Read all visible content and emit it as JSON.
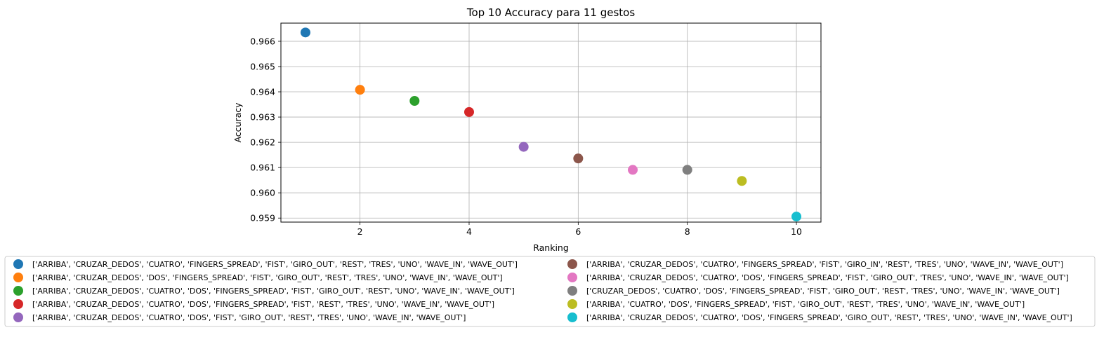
{
  "chart_data": {
    "type": "scatter",
    "title": "Top 10 Accuracy para 11 gestos",
    "xlabel": "Ranking",
    "ylabel": "Accuracy",
    "xlim": [
      0.55,
      10.45
    ],
    "ylim": [
      0.95884,
      0.96672
    ],
    "xticks": [
      2,
      4,
      6,
      8,
      10
    ],
    "xtick_labels": [
      "2",
      "4",
      "6",
      "8",
      "10"
    ],
    "yticks": [
      0.959,
      0.96,
      0.961,
      0.962,
      0.963,
      0.964,
      0.965,
      0.966
    ],
    "ytick_labels": [
      "0.959",
      "0.960",
      "0.961",
      "0.962",
      "0.963",
      "0.964",
      "0.965",
      "0.966"
    ],
    "grid": true,
    "legend_position": "below-center",
    "legend_columns": 2,
    "series": [
      {
        "name": "['ARRIBA', 'CRUZAR_DEDOS', 'CUATRO', 'FINGERS_SPREAD', 'FIST', 'GIRO_OUT', 'REST', 'TRES', 'UNO', 'WAVE_IN', 'WAVE_OUT']",
        "x": 1,
        "y": 0.96635,
        "color": "#1f77b4"
      },
      {
        "name": "['ARRIBA', 'CRUZAR_DEDOS', 'DOS', 'FINGERS_SPREAD', 'FIST', 'GIRO_OUT', 'REST', 'TRES', 'UNO', 'WAVE_IN', 'WAVE_OUT']",
        "x": 2,
        "y": 0.96408,
        "color": "#ff7f0e"
      },
      {
        "name": "['ARRIBA', 'CRUZAR_DEDOS', 'CUATRO', 'DOS', 'FINGERS_SPREAD', 'FIST', 'GIRO_OUT', 'REST', 'UNO', 'WAVE_IN', 'WAVE_OUT']",
        "x": 3,
        "y": 0.96364,
        "color": "#2ca02c"
      },
      {
        "name": "['ARRIBA', 'CRUZAR_DEDOS', 'CUATRO', 'DOS', 'FINGERS_SPREAD', 'FIST', 'REST', 'TRES', 'UNO', 'WAVE_IN', 'WAVE_OUT']",
        "x": 4,
        "y": 0.9632,
        "color": "#d62728"
      },
      {
        "name": "['ARRIBA', 'CRUZAR_DEDOS', 'CUATRO', 'DOS', 'FIST', 'GIRO_OUT', 'REST', 'TRES', 'UNO', 'WAVE_IN', 'WAVE_OUT']",
        "x": 5,
        "y": 0.96182,
        "color": "#9467bd"
      },
      {
        "name": "['ARRIBA', 'CRUZAR_DEDOS', 'CUATRO', 'FINGERS_SPREAD', 'FIST', 'GIRO_IN', 'REST', 'TRES', 'UNO', 'WAVE_IN', 'WAVE_OUT']",
        "x": 6,
        "y": 0.96136,
        "color": "#8c564b"
      },
      {
        "name": "['ARRIBA', 'CRUZAR_DEDOS', 'CUATRO', 'DOS', 'FINGERS_SPREAD', 'FIST', 'GIRO_OUT', 'TRES', 'UNO', 'WAVE_IN', 'WAVE_OUT']",
        "x": 7,
        "y": 0.96091,
        "color": "#e377c2"
      },
      {
        "name": "['CRUZAR_DEDOS', 'CUATRO', 'DOS', 'FINGERS_SPREAD', 'FIST', 'GIRO_OUT', 'REST', 'TRES', 'UNO', 'WAVE_IN', 'WAVE_OUT']",
        "x": 8,
        "y": 0.96091,
        "color": "#7f7f7f"
      },
      {
        "name": "['ARRIBA', 'CUATRO', 'DOS', 'FINGERS_SPREAD', 'FIST', 'GIRO_OUT', 'REST', 'TRES', 'UNO', 'WAVE_IN', 'WAVE_OUT']",
        "x": 9,
        "y": 0.96047,
        "color": "#bcbd22"
      },
      {
        "name": "['ARRIBA', 'CRUZAR_DEDOS', 'CUATRO', 'DOS', 'FINGERS_SPREAD', 'GIRO_OUT', 'REST', 'TRES', 'UNO', 'WAVE_IN', 'WAVE_OUT']",
        "x": 10,
        "y": 0.95906,
        "color": "#17becf"
      }
    ]
  }
}
